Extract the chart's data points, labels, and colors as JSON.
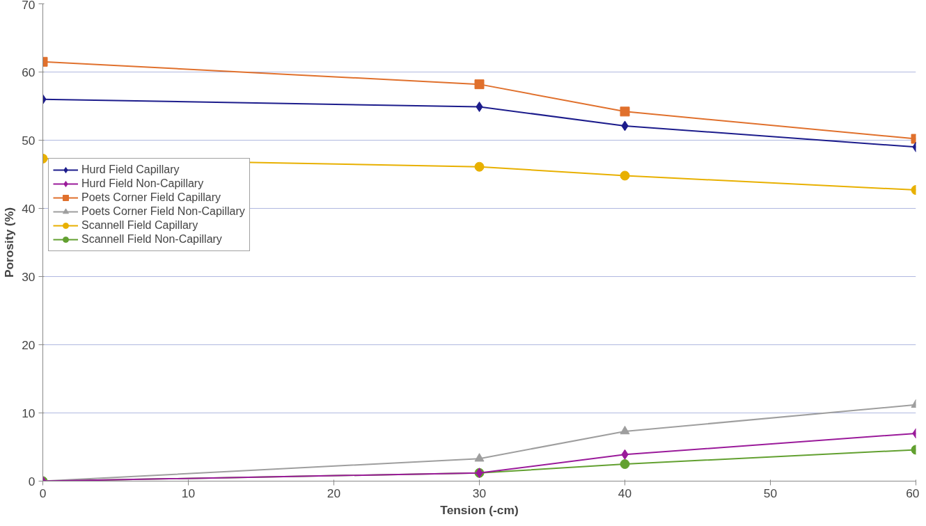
{
  "chart_data": {
    "type": "line",
    "xlabel": "Tension (-cm)",
    "ylabel": "Porosity (%)",
    "x": [
      0,
      30,
      40,
      60
    ],
    "series": [
      {
        "name": "Hurd Field Capillary",
        "color": "#1c1c8c",
        "marker": "diamond",
        "values": [
          56.0,
          54.9,
          52.1,
          49.0
        ]
      },
      {
        "name": "Hurd Field Non-Capillary",
        "color": "#9a1a9a",
        "marker": "diamond",
        "values": [
          0,
          1.2,
          3.9,
          7.0
        ]
      },
      {
        "name": "Poets Corner Field Capillary",
        "color": "#e0702c",
        "marker": "square",
        "values": [
          61.5,
          58.2,
          54.2,
          50.2
        ]
      },
      {
        "name": "Poets Corner Field Non-Capillary",
        "color": "#9e9e9e",
        "marker": "triangle",
        "values": [
          0,
          3.3,
          7.3,
          11.2
        ]
      },
      {
        "name": "Scannell Field Capillary",
        "color": "#e8b000",
        "marker": "circle",
        "values": [
          47.3,
          46.1,
          44.8,
          42.7
        ]
      },
      {
        "name": "Scannell Field Non-Capillary",
        "color": "#62a030",
        "marker": "circle",
        "values": [
          0,
          1.2,
          2.5,
          4.6
        ]
      }
    ],
    "xlim": [
      0,
      60
    ],
    "xticks": [
      0,
      10,
      20,
      30,
      40,
      50,
      60
    ],
    "ylim": [
      0,
      70
    ],
    "yticks": [
      0,
      10,
      20,
      30,
      40,
      50,
      60,
      70
    ],
    "grid": "y",
    "legend": "left",
    "line_style": "solid"
  }
}
